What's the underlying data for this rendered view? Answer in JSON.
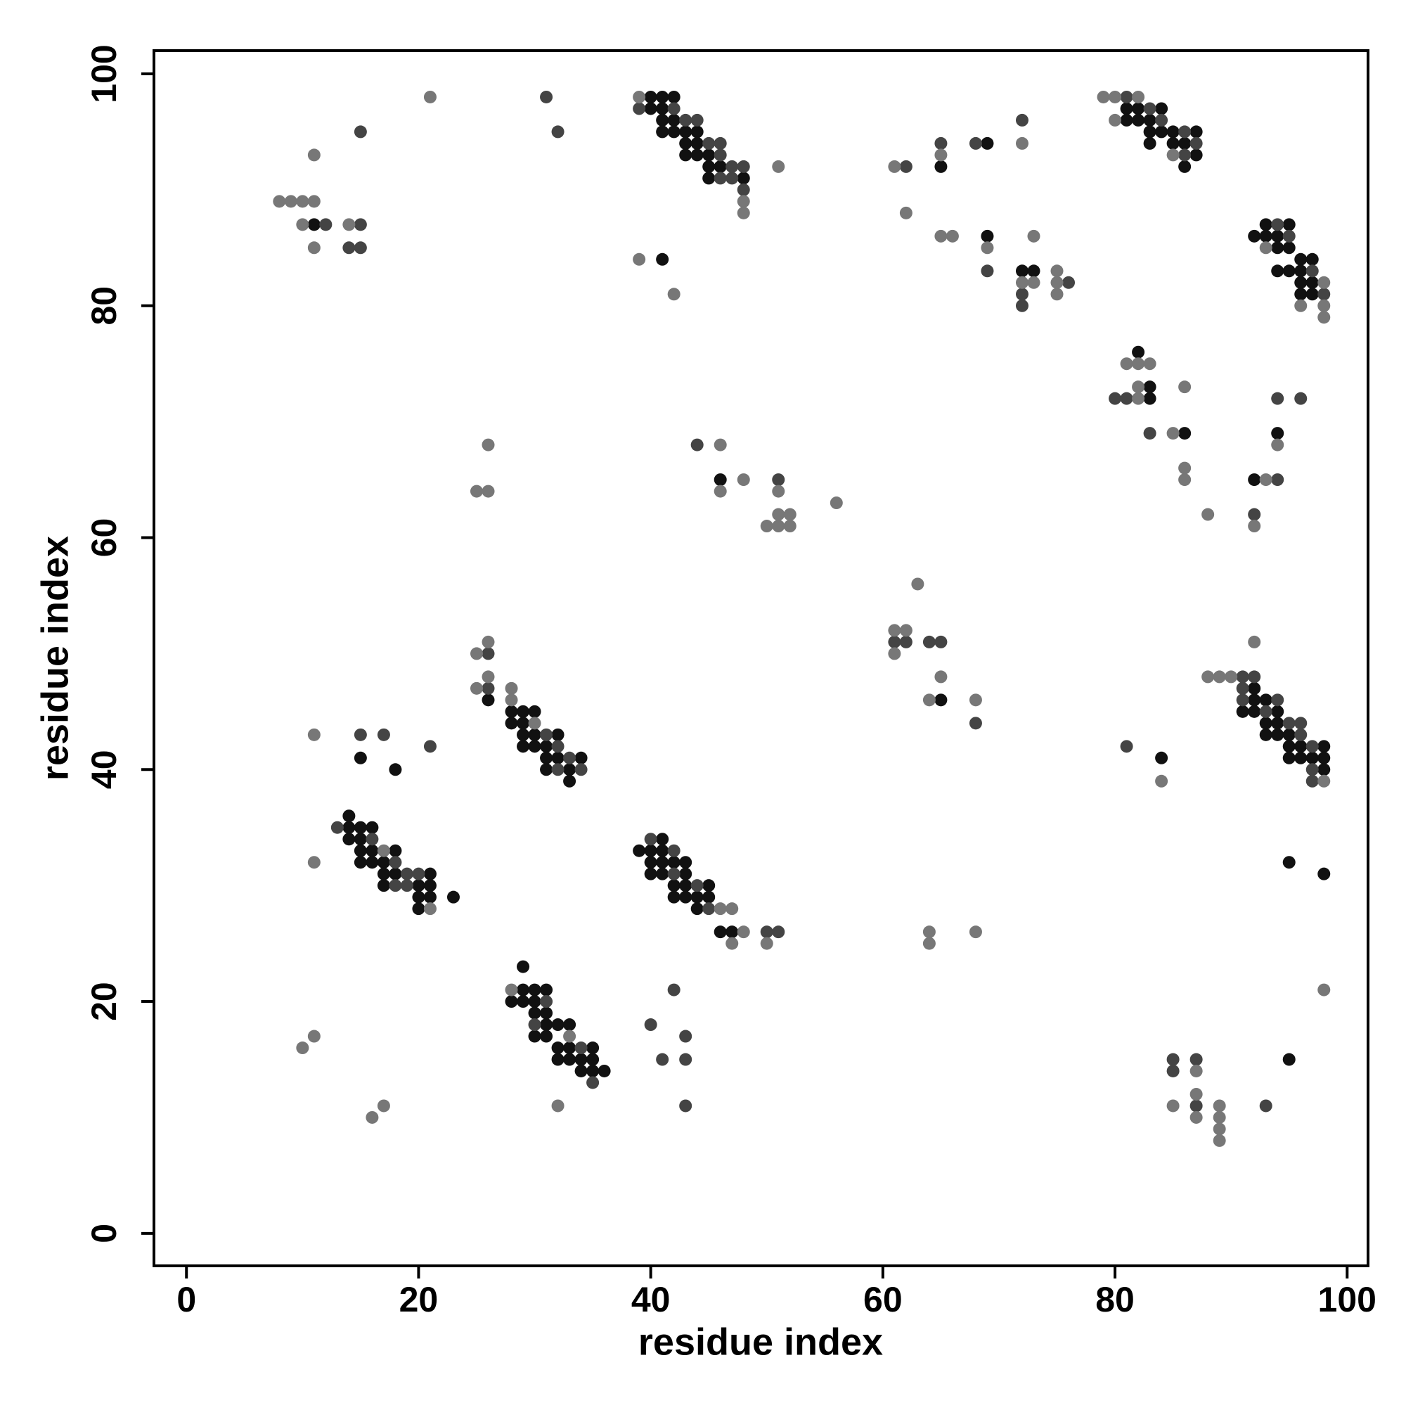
{
  "chart_data": {
    "type": "scatter",
    "xlabel": "residue index",
    "ylabel": "residue index",
    "xlim": [
      -2.8,
      101.8
    ],
    "ylim": [
      -2.8,
      102
    ],
    "xticks": [
      0,
      20,
      40,
      60,
      80,
      100
    ],
    "yticks": [
      0,
      20,
      40,
      60,
      80,
      100
    ],
    "series": [
      {
        "color": "#111111",
        "x": [
          11,
          40,
          41,
          42,
          40,
          41,
          41,
          42,
          41,
          42,
          43,
          44,
          43,
          44,
          43,
          44,
          45,
          45,
          46,
          45,
          48,
          41,
          65,
          69,
          69,
          72,
          73,
          81,
          82,
          84,
          81,
          82,
          83,
          83,
          84,
          85,
          87,
          83,
          85,
          86,
          87,
          86,
          93,
          95,
          92,
          93,
          94,
          94,
          95,
          96,
          97,
          94,
          95,
          96,
          96,
          97,
          96,
          97,
          82,
          83,
          83,
          86,
          92,
          94,
          46,
          65,
          26,
          28,
          29,
          30,
          28,
          29,
          29,
          30,
          32,
          29,
          30,
          31,
          31,
          32,
          34,
          31,
          33,
          33,
          15,
          18,
          14,
          14,
          15,
          16,
          14,
          15,
          15,
          16,
          18,
          15,
          16,
          17,
          17,
          18,
          21,
          17,
          20,
          21,
          20,
          21,
          23,
          20,
          41,
          39,
          40,
          41,
          40,
          41,
          42,
          43,
          40,
          41,
          43,
          42,
          43,
          45,
          42,
          43,
          44,
          45,
          44,
          46,
          47,
          92,
          92,
          93,
          91,
          92,
          94,
          93,
          94,
          93,
          94,
          95,
          95,
          96,
          98,
          95,
          96,
          97,
          98,
          98,
          84,
          95,
          98,
          29,
          29,
          30,
          31,
          28,
          29,
          30,
          30,
          31,
          31,
          32,
          33,
          30,
          31,
          32,
          33,
          35,
          32,
          33,
          34,
          35,
          34,
          35,
          36,
          95
        ],
        "y": [
          87,
          98,
          98,
          98,
          97,
          97,
          96,
          96,
          95,
          95,
          95,
          95,
          94,
          94,
          93,
          93,
          93,
          92,
          92,
          91,
          91,
          84,
          92,
          94,
          86,
          83,
          83,
          97,
          97,
          97,
          96,
          96,
          96,
          95,
          95,
          95,
          95,
          94,
          94,
          94,
          93,
          92,
          87,
          87,
          86,
          86,
          86,
          85,
          85,
          84,
          84,
          83,
          83,
          83,
          82,
          82,
          81,
          81,
          76,
          73,
          72,
          69,
          65,
          69,
          65,
          46,
          46,
          45,
          45,
          45,
          44,
          44,
          43,
          43,
          43,
          42,
          42,
          42,
          41,
          41,
          41,
          40,
          40,
          39,
          41,
          40,
          36,
          35,
          35,
          35,
          34,
          34,
          33,
          33,
          33,
          32,
          32,
          32,
          31,
          31,
          31,
          30,
          30,
          30,
          29,
          29,
          29,
          28,
          34,
          33,
          33,
          33,
          32,
          32,
          32,
          32,
          31,
          31,
          31,
          30,
          30,
          30,
          29,
          29,
          29,
          29,
          28,
          26,
          26,
          47,
          46,
          46,
          45,
          45,
          45,
          44,
          44,
          43,
          43,
          43,
          42,
          42,
          42,
          41,
          41,
          41,
          41,
          40,
          41,
          32,
          31,
          23,
          21,
          21,
          21,
          20,
          20,
          20,
          19,
          19,
          18,
          18,
          18,
          17,
          17,
          16,
          16,
          16,
          15,
          15,
          15,
          15,
          14,
          14,
          14,
          15
        ]
      },
      {
        "color": "#444444",
        "x": [
          15,
          31,
          32,
          12,
          15,
          14,
          15,
          39,
          42,
          43,
          44,
          45,
          46,
          46,
          47,
          48,
          46,
          47,
          48,
          62,
          65,
          68,
          72,
          69,
          72,
          72,
          76,
          81,
          83,
          84,
          86,
          87,
          86,
          94,
          95,
          97,
          98,
          80,
          81,
          83,
          94,
          94,
          96,
          92,
          44,
          51,
          61,
          62,
          64,
          65,
          68,
          26,
          26,
          31,
          32,
          33,
          32,
          34,
          15,
          17,
          21,
          13,
          16,
          18,
          19,
          20,
          18,
          19,
          40,
          42,
          42,
          44,
          45,
          50,
          51,
          91,
          92,
          91,
          91,
          94,
          93,
          95,
          96,
          96,
          97,
          97,
          97,
          81,
          31,
          30,
          34,
          35,
          40,
          42,
          41,
          43,
          43,
          43,
          85,
          85,
          87,
          87,
          93
        ],
        "y": [
          95,
          98,
          95,
          87,
          87,
          85,
          85,
          97,
          97,
          96,
          96,
          94,
          94,
          93,
          92,
          92,
          91,
          91,
          90,
          92,
          94,
          94,
          96,
          83,
          81,
          80,
          82,
          98,
          97,
          96,
          95,
          94,
          93,
          87,
          86,
          83,
          81,
          72,
          72,
          69,
          65,
          72,
          72,
          62,
          68,
          65,
          51,
          51,
          51,
          51,
          44,
          50,
          47,
          43,
          42,
          41,
          40,
          40,
          43,
          43,
          42,
          35,
          34,
          32,
          31,
          31,
          30,
          30,
          34,
          33,
          31,
          30,
          28,
          26,
          26,
          48,
          48,
          47,
          46,
          46,
          45,
          44,
          44,
          43,
          42,
          40,
          39,
          42,
          20,
          18,
          16,
          13,
          18,
          21,
          15,
          17,
          15,
          11,
          15,
          14,
          15,
          11,
          11
        ]
      },
      {
        "color": "#777777",
        "x": [
          21,
          11,
          8,
          9,
          10,
          11,
          10,
          14,
          11,
          39,
          48,
          48,
          51,
          39,
          42,
          61,
          65,
          62,
          72,
          65,
          66,
          69,
          73,
          72,
          73,
          75,
          75,
          75,
          79,
          80,
          82,
          80,
          85,
          93,
          98,
          96,
          98,
          98,
          81,
          82,
          83,
          82,
          82,
          85,
          86,
          86,
          86,
          88,
          93,
          94,
          92,
          25,
          26,
          26,
          46,
          46,
          48,
          51,
          50,
          51,
          51,
          52,
          52,
          56,
          63,
          61,
          62,
          61,
          65,
          64,
          68,
          25,
          26,
          25,
          26,
          28,
          28,
          30,
          11,
          17,
          21,
          11,
          46,
          47,
          48,
          47,
          50,
          64,
          64,
          68,
          92,
          88,
          89,
          90,
          98,
          84,
          98,
          28,
          33,
          32,
          10,
          11,
          16,
          17,
          85,
          87,
          87,
          87,
          89,
          89,
          89,
          89
        ],
        "y": [
          98,
          93,
          89,
          89,
          89,
          89,
          87,
          87,
          85,
          98,
          89,
          88,
          92,
          84,
          81,
          92,
          93,
          88,
          94,
          86,
          86,
          85,
          86,
          82,
          82,
          83,
          82,
          81,
          98,
          98,
          98,
          96,
          93,
          85,
          82,
          80,
          80,
          79,
          75,
          75,
          75,
          73,
          72,
          69,
          73,
          66,
          65,
          62,
          65,
          68,
          61,
          64,
          64,
          68,
          68,
          64,
          65,
          64,
          61,
          61,
          62,
          62,
          61,
          63,
          56,
          52,
          52,
          50,
          48,
          46,
          46,
          50,
          51,
          47,
          48,
          47,
          46,
          44,
          43,
          33,
          28,
          32,
          28,
          28,
          26,
          25,
          25,
          26,
          25,
          26,
          51,
          48,
          48,
          48,
          39,
          39,
          21,
          21,
          17,
          11,
          16,
          17,
          10,
          11,
          11,
          14,
          12,
          10,
          11,
          10,
          9,
          8
        ]
      }
    ]
  }
}
